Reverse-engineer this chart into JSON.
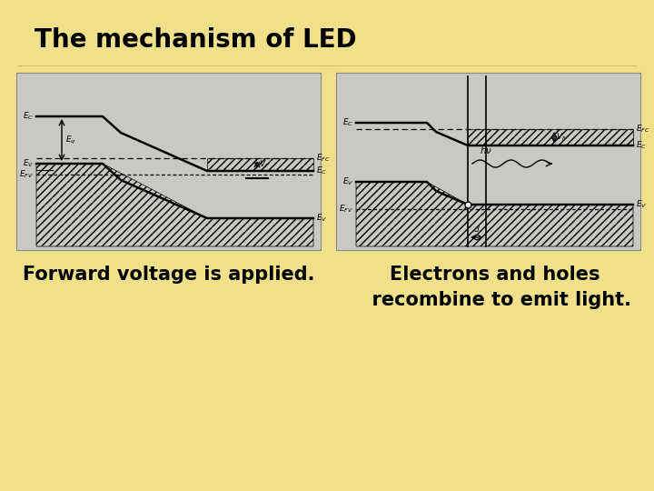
{
  "title": "The mechanism of LED",
  "bg_color": "#f0e08a",
  "diagram_bg": "#c8c8c4",
  "text_left": "Forward voltage is applied.",
  "text_right_line1": "Electrons and holes",
  "text_right_line2": "  recombine to emit light.",
  "title_fontsize": 20,
  "label_fontsize": 15,
  "dlfs": 6.5
}
